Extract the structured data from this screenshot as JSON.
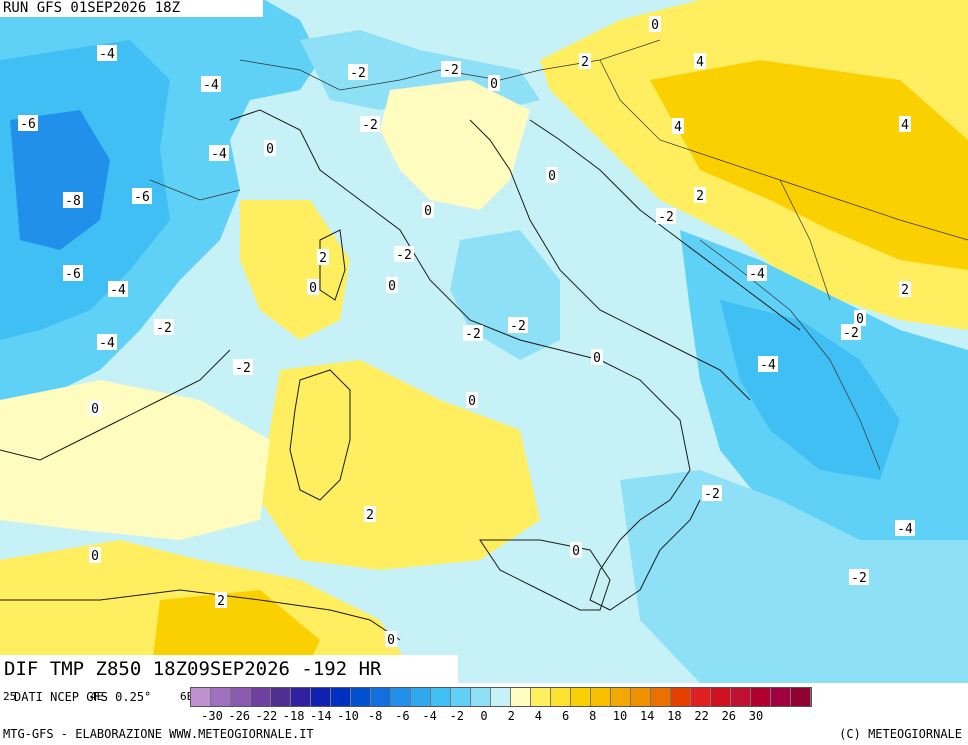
{
  "header": {
    "run": "RUN GFS 01SEP2026 18Z"
  },
  "field_title": "DIF TMP Z850 18Z09SEP2026 -192 HR",
  "source": "DATI NCEP GFS 0.25°",
  "footer": {
    "left": "MTG-GFS - ELABORAZIONE WWW.METEOGIORNALE.IT",
    "right": "(C) METEOGIORNALE"
  },
  "left_ticks": [
    "25",
    "4E",
    "6E"
  ],
  "map": {
    "variable": "850 hPa temperature difference",
    "isoline_labels": [
      "-4",
      "-4",
      "-6",
      "-8",
      "-6",
      "-6",
      "-4",
      "-4",
      "-2",
      "-4",
      "0",
      "0",
      "2",
      "2",
      "-2",
      "-2",
      "-2",
      "0",
      "0",
      "-2",
      "-2",
      "0",
      "0",
      "2",
      "0",
      "-2",
      "-2",
      "0",
      "-2",
      "0",
      "2",
      "4",
      "4",
      "4",
      "0",
      "2",
      "-2",
      "-4",
      "2",
      "0",
      "-2",
      "-4",
      "-2",
      "-4",
      "-2",
      "0",
      "0",
      "0",
      "2"
    ]
  },
  "colorbar": {
    "colors": [
      "#c090d0",
      "#a070c0",
      "#8a5ab0",
      "#7040a0",
      "#502f90",
      "#3020a0",
      "#1020b0",
      "#0030c0",
      "#0050d0",
      "#1070e0",
      "#2090ea",
      "#30a8f0",
      "#40bff4",
      "#5fd0f6",
      "#8ee0f6",
      "#c6f2f7",
      "#fffcc0",
      "#ffee60",
      "#fde030",
      "#fbd000",
      "#f6c000",
      "#f2a800",
      "#ee9000",
      "#ea7000",
      "#e64000",
      "#e02020",
      "#d01020",
      "#c01030",
      "#b00030",
      "#a00040",
      "#900030"
    ],
    "tick_labels": [
      "-30",
      "-26",
      "-22",
      "-18",
      "-14",
      "-10",
      "-8",
      "-6",
      "-4",
      "-2",
      "0",
      "2",
      "4",
      "6",
      "8",
      "10",
      "14",
      "18",
      "22",
      "26",
      "30"
    ]
  },
  "colors": {
    "cold_strong": "#40bff4",
    "cold_light": "#8ee0f6",
    "neutral": "#c6f2f7",
    "warm_light": "#fffcc0",
    "warm": "#ffee60",
    "warm_strong": "#fbd000"
  }
}
